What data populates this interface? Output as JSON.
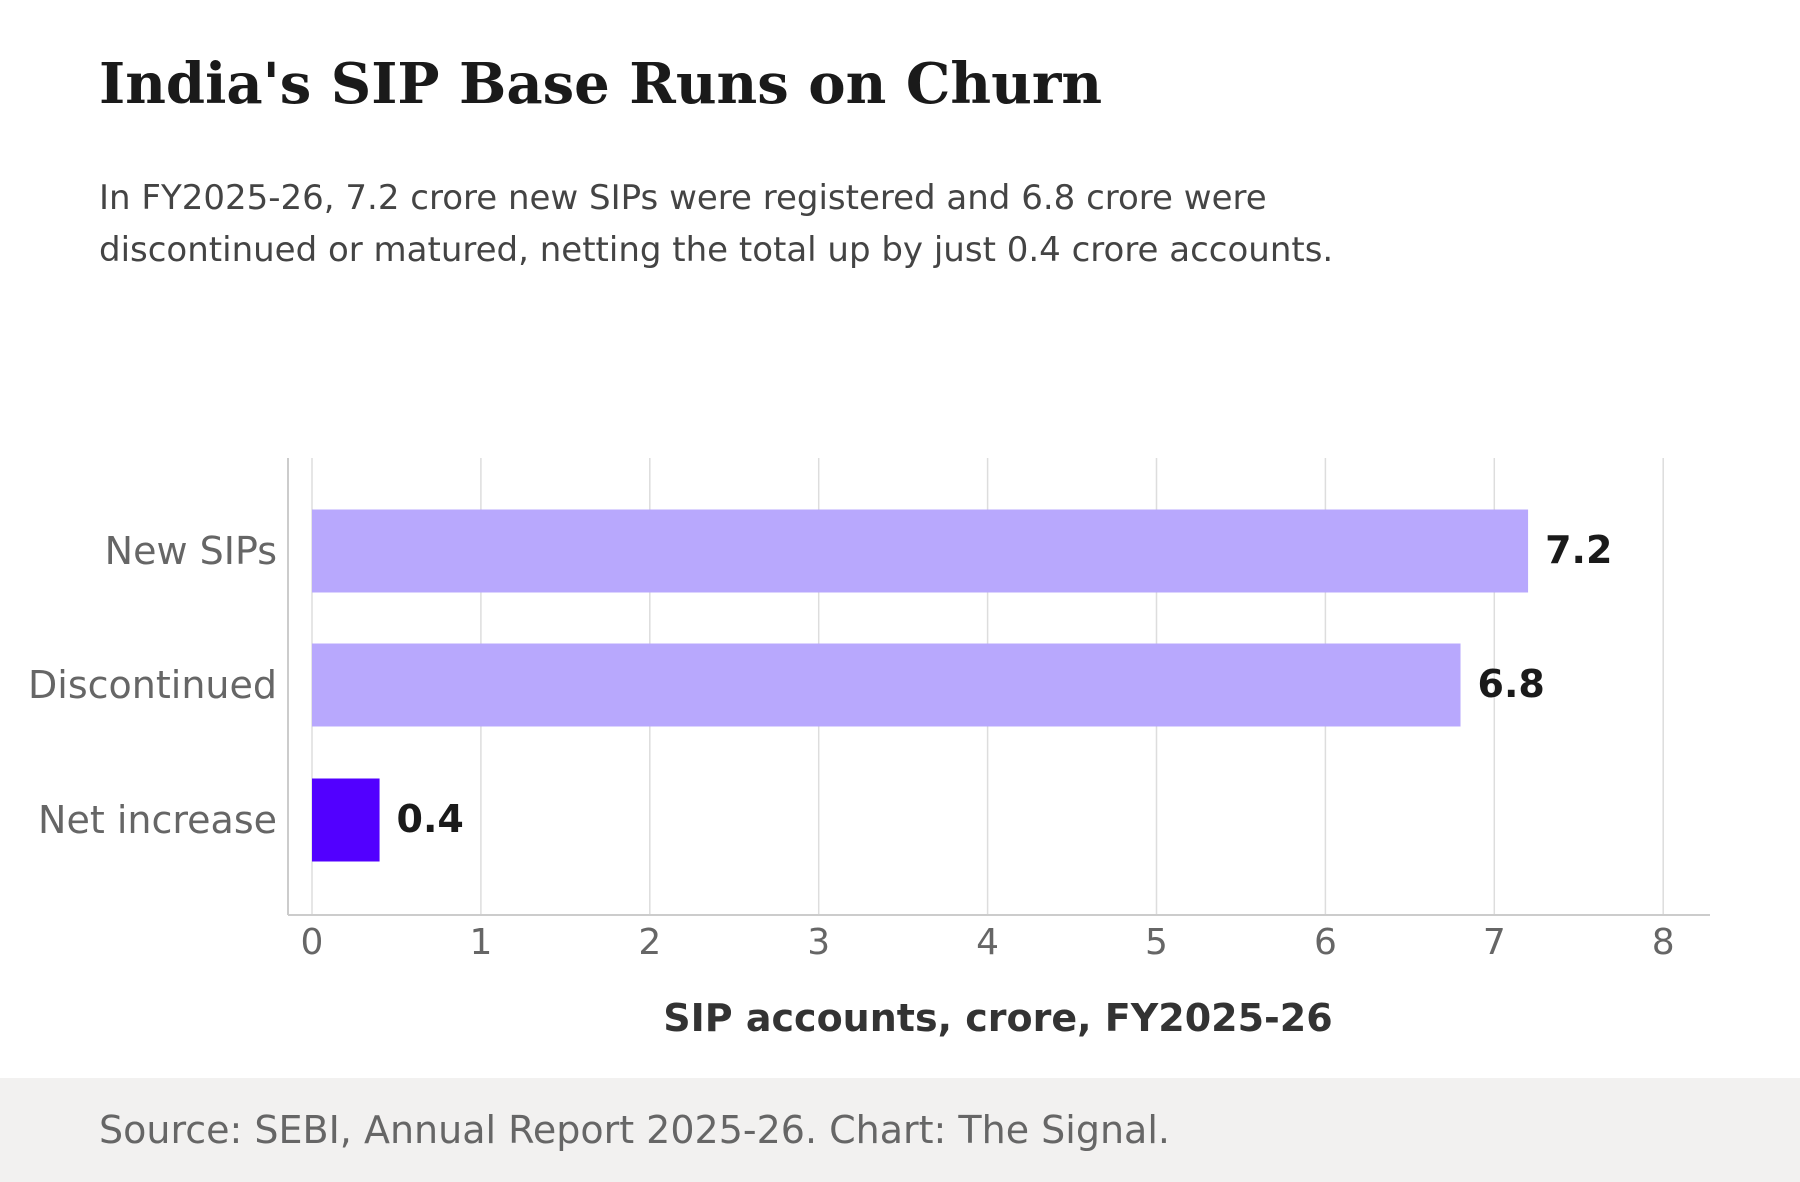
{
  "title": "India's SIP Base Runs on Churn",
  "subtitle": "In FY2025-26, 7.2 crore new SIPs were registered and 6.8 crore were discontinued or matured, netting the total up by just 0.4 crore accounts.",
  "source": "Source: SEBI, Annual Report 2025-26. Chart: The Signal.",
  "colors": {
    "bar_default": "#b8a8fd",
    "bar_highlight": "#5200ff",
    "grid": "#dddddd",
    "axis": "#cccccc",
    "tick_text": "#666666",
    "category_text": "#666666",
    "value_text": "#1a1a1a",
    "xlabel_text": "#333333"
  },
  "chart_data": {
    "type": "bar",
    "orientation": "horizontal",
    "categories": [
      "New SIPs",
      "Discontinued",
      "Net increase"
    ],
    "values": [
      7.2,
      6.8,
      0.4
    ],
    "value_labels": [
      "7.2",
      "6.8",
      "0.4"
    ],
    "highlight": [
      false,
      false,
      true
    ],
    "xlabel": "SIP accounts, crore, FY2025-26",
    "ylabel": "",
    "xlim": [
      0,
      8
    ],
    "xticks": [
      0,
      1,
      2,
      3,
      4,
      5,
      6,
      7,
      8
    ],
    "grid": "vertical",
    "legend": "none"
  }
}
